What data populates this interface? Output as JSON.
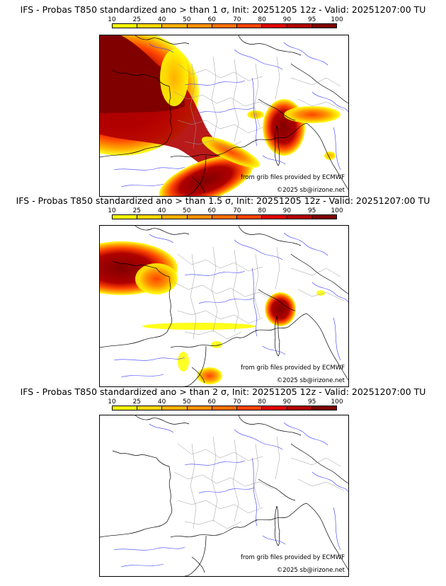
{
  "colorbar": {
    "labels": [
      "10",
      "25",
      "40",
      "50",
      "60",
      "70",
      "80",
      "90",
      "95",
      "100"
    ],
    "colors": [
      "#ffff00",
      "#ffd700",
      "#ffb000",
      "#ff9000",
      "#ff7000",
      "#ff4500",
      "#e00000",
      "#b00000",
      "#800000"
    ]
  },
  "panels": [
    {
      "title": "IFS - Probas T850  standardized ano > than 1 σ, Init: 20251205 12z - Valid: 20251207:00 TU",
      "source_note": "from grib files provided by ECMWF",
      "copyright": "©2025 sb@irizone.net"
    },
    {
      "title": "IFS - Probas T850  standardized ano > than 1.5 σ, Init: 20251205 12z - Valid: 20251207:00 TU",
      "source_note": "from grib files provided by ECMWF",
      "copyright": "©2025 sb@irizone.net"
    },
    {
      "title": "IFS - Probas T850  standardized ano > than 2 σ, Init: 20251205 12z - Valid: 20251207:00 TU",
      "source_note": "from grib files provided by ECMWF",
      "copyright": "©2025 sb@irizone.net"
    }
  ]
}
